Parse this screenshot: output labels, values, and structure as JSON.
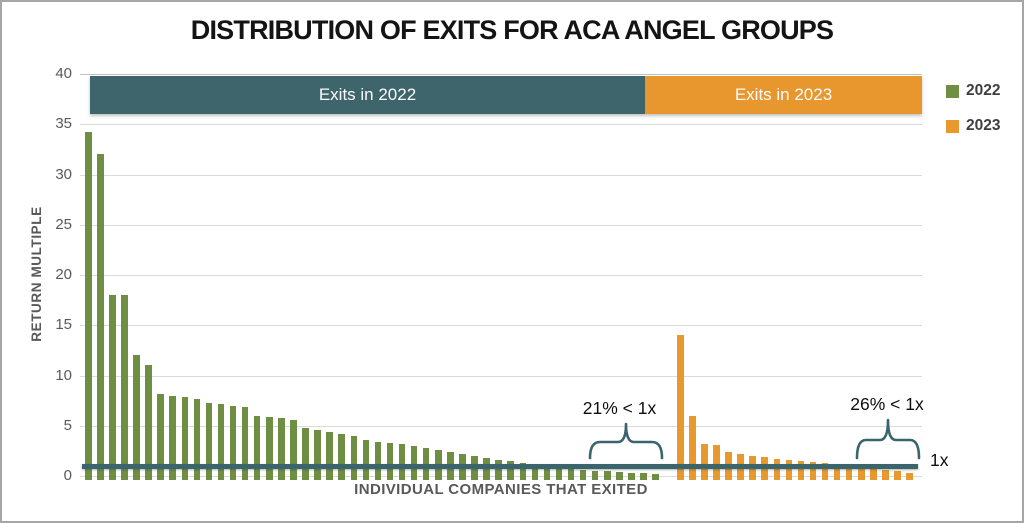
{
  "title": "DISTRIBUTION OF EXITS FOR ACA ANGEL GROUPS",
  "legend": {
    "items": [
      {
        "label": "2022",
        "color": "#6e8f43"
      },
      {
        "label": "2023",
        "color": "#e8992e"
      }
    ]
  },
  "banner": {
    "left": {
      "label": "Exits in 2022",
      "color": "#3d656b"
    },
    "right": {
      "label": "Exits in 2023",
      "color": "#e8972e"
    }
  },
  "annotations": {
    "left_pct": "21% < 1x",
    "right_pct": "26% < 1x",
    "one_x_label": "1x",
    "brace_color": "#3a656c"
  },
  "colors": {
    "bar_2022": "#6e8f43",
    "bar_2023": "#e8992e",
    "reference_line": "#3a656c",
    "gridline": "#dadada",
    "axis_text": "#595959"
  },
  "chart_data": {
    "type": "bar",
    "title": "DISTRIBUTION OF EXITS FOR ACA ANGEL GROUPS",
    "xlabel": "INDIVIDUAL COMPANIES THAT EXITED",
    "ylabel": "RETURN MULTIPLE",
    "ylim": [
      0,
      40
    ],
    "yticks": [
      0,
      5,
      10,
      15,
      20,
      25,
      30,
      35,
      40
    ],
    "grid": true,
    "legend_position": "right",
    "reference_line": {
      "value": 1,
      "label": "1x"
    },
    "annotations": [
      {
        "text": "21% < 1x",
        "meaning": "21% of 2022 exits returned less than 1x"
      },
      {
        "text": "26% < 1x",
        "meaning": "26% of 2023 exits returned less than 1x"
      }
    ],
    "series": [
      {
        "name": "2022",
        "values": [
          34.2,
          32,
          18,
          18,
          12,
          11,
          8.2,
          8,
          7.9,
          7.7,
          7.3,
          7.2,
          7,
          6.9,
          6,
          5.9,
          5.8,
          5.6,
          4.8,
          4.6,
          4.4,
          4.2,
          4,
          3.6,
          3.4,
          3.3,
          3.2,
          3,
          2.8,
          2.6,
          2.4,
          2.2,
          2,
          1.8,
          1.6,
          1.5,
          1.3,
          1.2,
          0.9,
          0.8,
          0.7,
          0.6,
          0.5,
          0.45,
          0.4,
          0.3,
          0.25,
          0.2
        ]
      },
      {
        "name": "2023",
        "values": [
          14,
          6,
          3.2,
          3.1,
          2.4,
          2.2,
          2.0,
          1.9,
          1.7,
          1.6,
          1.5,
          1.4,
          1.3,
          1.2,
          1.1,
          0.9,
          0.75,
          0.6,
          0.45,
          0.3
        ]
      }
    ]
  }
}
